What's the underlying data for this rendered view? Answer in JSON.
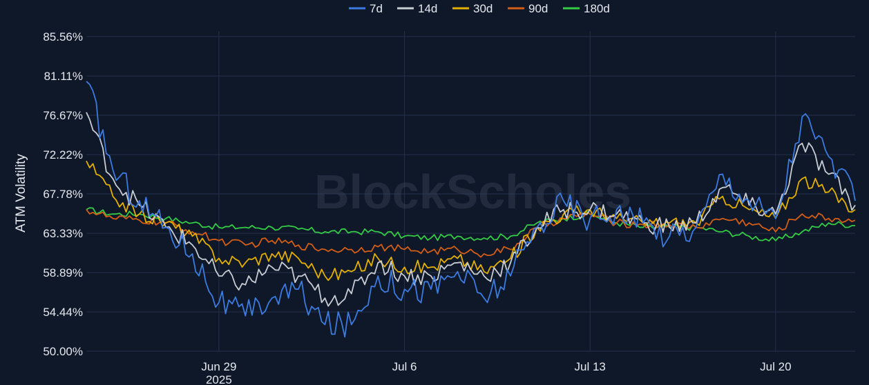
{
  "watermark": "BlockScholes",
  "chart_data": {
    "type": "line",
    "title": "",
    "xlabel": "",
    "ylabel": "ATM Volatility",
    "x_range": [
      "2025-06-24",
      "2025-07-23"
    ],
    "ylim": [
      50.0,
      85.56
    ],
    "y_ticks": [
      50.0,
      54.44,
      58.89,
      63.33,
      67.78,
      72.22,
      76.67,
      81.11,
      85.56
    ],
    "y_tick_labels": [
      "50.00%",
      "54.44%",
      "58.89%",
      "63.33%",
      "67.78%",
      "72.22%",
      "76.67%",
      "81.11%",
      "85.56%"
    ],
    "x_ticks": [
      {
        "date": "2025-06-29",
        "label": "Jun 29",
        "sub": "2025"
      },
      {
        "date": "2025-07-06",
        "label": "Jul 6",
        "sub": ""
      },
      {
        "date": "2025-07-13",
        "label": "Jul 13",
        "sub": ""
      },
      {
        "date": "2025-07-20",
        "label": "Jul 20",
        "sub": ""
      }
    ],
    "grid": true,
    "legend_position": "top-center",
    "x": [
      "2025-06-24",
      "2025-06-25",
      "2025-06-26",
      "2025-06-27",
      "2025-06-28",
      "2025-06-29",
      "2025-06-30",
      "2025-07-01",
      "2025-07-02",
      "2025-07-03",
      "2025-07-04",
      "2025-07-05",
      "2025-07-06",
      "2025-07-07",
      "2025-07-08",
      "2025-07-09",
      "2025-07-10",
      "2025-07-11",
      "2025-07-12",
      "2025-07-13",
      "2025-07-14",
      "2025-07-15",
      "2025-07-16",
      "2025-07-17",
      "2025-07-18",
      "2025-07-19",
      "2025-07-20",
      "2025-07-21",
      "2025-07-22",
      "2025-07-23"
    ],
    "series": [
      {
        "name": "7d",
        "color": "#3d7be0",
        "values": [
          80.5,
          70.5,
          67.0,
          64.0,
          61.0,
          55.5,
          54.0,
          56.0,
          57.0,
          53.0,
          53.0,
          58.5,
          57.0,
          57.0,
          59.0,
          56.0,
          58.5,
          64.0,
          67.0,
          65.0,
          66.0,
          64.5,
          63.0,
          64.0,
          70.0,
          67.0,
          65.0,
          76.5,
          72.0,
          67.0
        ]
      },
      {
        "name": "14d",
        "color": "#c9cdd4",
        "values": [
          77.0,
          69.5,
          66.5,
          64.0,
          62.0,
          58.5,
          57.5,
          59.5,
          58.5,
          56.0,
          56.5,
          60.0,
          58.5,
          58.5,
          60.0,
          58.5,
          60.0,
          64.0,
          66.0,
          66.0,
          65.5,
          64.5,
          64.0,
          64.5,
          68.5,
          66.5,
          65.5,
          73.5,
          70.0,
          66.5
        ]
      },
      {
        "name": "30d",
        "color": "#e5b000",
        "values": [
          71.5,
          67.5,
          65.5,
          64.5,
          63.0,
          60.5,
          60.0,
          61.0,
          60.5,
          58.5,
          59.0,
          60.5,
          59.5,
          59.5,
          60.5,
          59.0,
          60.5,
          64.0,
          65.5,
          66.0,
          65.0,
          64.5,
          64.5,
          64.5,
          67.5,
          66.0,
          65.0,
          69.5,
          68.0,
          66.0
        ]
      },
      {
        "name": "90d",
        "color": "#d55e17",
        "values": [
          66.0,
          65.0,
          64.8,
          64.5,
          63.5,
          62.5,
          62.0,
          62.5,
          62.0,
          61.5,
          61.5,
          61.8,
          61.5,
          61.3,
          61.5,
          61.0,
          61.5,
          64.0,
          65.0,
          65.5,
          64.5,
          64.3,
          64.3,
          64.0,
          65.0,
          64.5,
          63.5,
          65.5,
          65.0,
          64.8
        ]
      },
      {
        "name": "180d",
        "color": "#33cc44",
        "values": [
          66.0,
          65.5,
          65.5,
          65.0,
          64.5,
          64.0,
          64.0,
          64.0,
          63.8,
          63.5,
          63.5,
          63.5,
          63.0,
          62.8,
          63.0,
          62.8,
          63.0,
          64.5,
          65.0,
          65.5,
          64.5,
          64.0,
          64.0,
          64.0,
          63.5,
          63.0,
          62.5,
          63.5,
          64.5,
          64.2
        ]
      }
    ]
  }
}
